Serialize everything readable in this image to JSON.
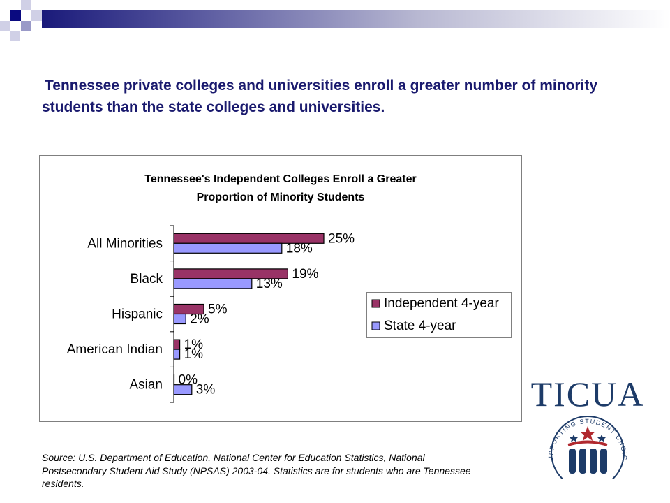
{
  "headline": "Tennessee private colleges and universities enroll a greater number of minority students than the state colleges and universities.",
  "source_note": "Source: U.S. Department of Education, National Center for Education Statistics, National Postsecondary Student Aid Study (NPSAS) 2003-04. Statistics are for students who are Tennessee residents.",
  "logo": {
    "wordmark": "TICUA",
    "tagline": "SUPPORTING STUDENT CHOICE"
  },
  "colors": {
    "headline": "#1a1a6e",
    "independent": "#993366",
    "state": "#9999ff",
    "logo_blue": "#1d3b68",
    "logo_red": "#b0282e"
  },
  "chart_data": {
    "type": "bar",
    "orientation": "horizontal",
    "title_lines": [
      "Tennessee's Independent Colleges Enroll a Greater",
      "Proportion of Minority Students"
    ],
    "categories": [
      "All Minorities",
      "Black",
      "Hispanic",
      "American Indian",
      "Asian"
    ],
    "series": [
      {
        "name": "Independent 4-year",
        "values": [
          25,
          19,
          5,
          1,
          0
        ],
        "labels": [
          "25%",
          "19%",
          "5%",
          "1%",
          "0%"
        ]
      },
      {
        "name": "State 4-year",
        "values": [
          18,
          13,
          2,
          1,
          3
        ],
        "labels": [
          "18%",
          "13%",
          "2%",
          "1%",
          "3%"
        ]
      }
    ],
    "xlim": [
      0,
      58
    ],
    "unit": "%",
    "grid": false,
    "legend_position": "right"
  }
}
